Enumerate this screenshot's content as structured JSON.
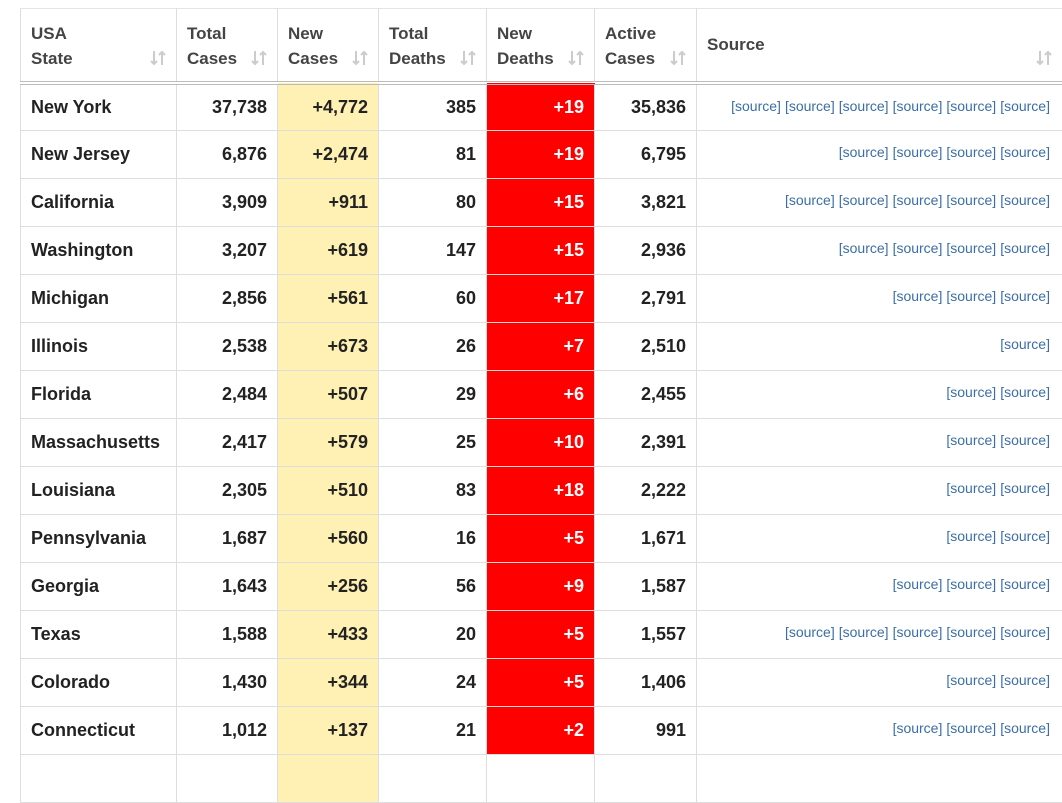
{
  "table": {
    "columns": [
      "USA State",
      "Total Cases",
      "New Cases",
      "Total Deaths",
      "New Deaths",
      "Active Cases",
      "Source"
    ],
    "rows": [
      [
        "New York",
        "37,738",
        "+4,772",
        "385",
        "+19",
        "35,836",
        [
          "[source]",
          "[source]",
          "[source]",
          "[source]",
          "[source]",
          "[source]"
        ]
      ],
      [
        "New Jersey",
        "6,876",
        "+2,474",
        "81",
        "+19",
        "6,795",
        [
          "[source]",
          "[source]",
          "[source]",
          "[source]"
        ]
      ],
      [
        "California",
        "3,909",
        "+911",
        "80",
        "+15",
        "3,821",
        [
          "[source]",
          "[source]",
          "[source]",
          "[source]",
          "[source]"
        ]
      ],
      [
        "Washington",
        "3,207",
        "+619",
        "147",
        "+15",
        "2,936",
        [
          "[source]",
          "[source]",
          "[source]",
          "[source]"
        ]
      ],
      [
        "Michigan",
        "2,856",
        "+561",
        "60",
        "+17",
        "2,791",
        [
          "[source]",
          "[source]",
          "[source]"
        ]
      ],
      [
        "Illinois",
        "2,538",
        "+673",
        "26",
        "+7",
        "2,510",
        [
          "[source]"
        ]
      ],
      [
        "Florida",
        "2,484",
        "+507",
        "29",
        "+6",
        "2,455",
        [
          "[source]",
          "[source]"
        ]
      ],
      [
        "Massachusetts",
        "2,417",
        "+579",
        "25",
        "+10",
        "2,391",
        [
          "[source]",
          "[source]"
        ]
      ],
      [
        "Louisiana",
        "2,305",
        "+510",
        "83",
        "+18",
        "2,222",
        [
          "[source]",
          "[source]"
        ]
      ],
      [
        "Pennsylvania",
        "1,687",
        "+560",
        "16",
        "+5",
        "1,671",
        [
          "[source]",
          "[source]"
        ]
      ],
      [
        "Georgia",
        "1,643",
        "+256",
        "56",
        "+9",
        "1,587",
        [
          "[source]",
          "[source]",
          "[source]"
        ]
      ],
      [
        "Texas",
        "1,588",
        "+433",
        "20",
        "+5",
        "1,557",
        [
          "[source]",
          "[source]",
          "[source]",
          "[source]",
          "[source]"
        ]
      ],
      [
        "Colorado",
        "1,430",
        "+344",
        "24",
        "+5",
        "1,406",
        [
          "[source]",
          "[source]"
        ]
      ],
      [
        "Connecticut",
        "1,012",
        "+137",
        "21",
        "+2",
        "991",
        [
          "[source]",
          "[source]",
          "[source]"
        ]
      ]
    ]
  }
}
